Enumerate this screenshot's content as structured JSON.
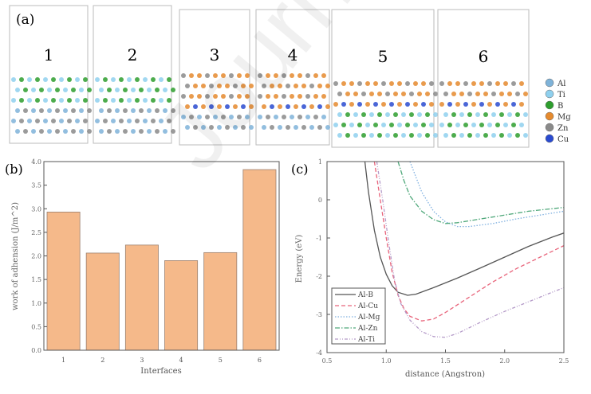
{
  "panel_a": {
    "label": "(a)",
    "structures": [
      "1",
      "2",
      "3",
      "4",
      "5",
      "6"
    ],
    "legend": [
      {
        "name": "Al",
        "color": "#7fb3d9"
      },
      {
        "name": "Ti",
        "color": "#8fd0ee"
      },
      {
        "name": "B",
        "color": "#2e9e2e"
      },
      {
        "name": "Mg",
        "color": "#e58a2e"
      },
      {
        "name": "Zn",
        "color": "#8a8a8a"
      },
      {
        "name": "Cu",
        "color": "#2a4bd0"
      }
    ]
  },
  "watermark": "Journal P",
  "chart_data": [
    {
      "panel_label": "(b)",
      "type": "bar",
      "categories": [
        "1",
        "2",
        "3",
        "4",
        "5",
        "6"
      ],
      "values": [
        2.93,
        2.06,
        2.23,
        1.9,
        2.07,
        3.83
      ],
      "xlabel": "Interfaces",
      "ylabel": "work of adhension (J/m^2)",
      "ylim": [
        0,
        4.0
      ],
      "yticks": [
        "0.0",
        "0.5",
        "1.0",
        "1.5",
        "2.0",
        "2.5",
        "3.0",
        "3.5",
        "4.0"
      ],
      "bar_color": "#f5b98a"
    },
    {
      "panel_label": "(c)",
      "type": "line",
      "xlabel": "distance (Angstron)",
      "ylabel": "Energy (eV)",
      "xlim": [
        0.5,
        2.5
      ],
      "ylim": [
        -4,
        1
      ],
      "xticks": [
        "0.5",
        "1.0",
        "1.5",
        "2.0",
        "2.5"
      ],
      "yticks": [
        "-4",
        "-3",
        "-2",
        "-1",
        "0",
        "1"
      ],
      "legend_position": "bottom-left",
      "series": [
        {
          "name": "Al-B",
          "color": "#555555",
          "dash": "none",
          "points": [
            [
              0.82,
              1
            ],
            [
              0.85,
              0.2
            ],
            [
              0.9,
              -0.8
            ],
            [
              0.95,
              -1.5
            ],
            [
              1.0,
              -1.95
            ],
            [
              1.05,
              -2.25
            ],
            [
              1.1,
              -2.42
            ],
            [
              1.18,
              -2.5
            ],
            [
              1.25,
              -2.47
            ],
            [
              1.4,
              -2.3
            ],
            [
              1.6,
              -2.05
            ],
            [
              1.8,
              -1.78
            ],
            [
              2.0,
              -1.5
            ],
            [
              2.2,
              -1.22
            ],
            [
              2.4,
              -0.98
            ],
            [
              2.5,
              -0.87
            ]
          ]
        },
        {
          "name": "Al-Cu",
          "color": "#e8637a",
          "dash": "5,3",
          "points": [
            [
              0.9,
              1
            ],
            [
              0.95,
              0.0
            ],
            [
              1.0,
              -1.0
            ],
            [
              1.05,
              -1.9
            ],
            [
              1.1,
              -2.5
            ],
            [
              1.15,
              -2.85
            ],
            [
              1.2,
              -3.05
            ],
            [
              1.3,
              -3.17
            ],
            [
              1.4,
              -3.12
            ],
            [
              1.5,
              -2.95
            ],
            [
              1.7,
              -2.55
            ],
            [
              1.9,
              -2.15
            ],
            [
              2.1,
              -1.8
            ],
            [
              2.3,
              -1.5
            ],
            [
              2.5,
              -1.2
            ]
          ]
        },
        {
          "name": "Al-Mg",
          "color": "#7fb0e0",
          "dash": "1.5,2",
          "points": [
            [
              1.2,
              1
            ],
            [
              1.25,
              0.6
            ],
            [
              1.3,
              0.2
            ],
            [
              1.4,
              -0.3
            ],
            [
              1.5,
              -0.58
            ],
            [
              1.6,
              -0.7
            ],
            [
              1.7,
              -0.7
            ],
            [
              1.9,
              -0.62
            ],
            [
              2.1,
              -0.5
            ],
            [
              2.3,
              -0.4
            ],
            [
              2.5,
              -0.3
            ]
          ]
        },
        {
          "name": "Al-Zn",
          "color": "#4fa87a",
          "dash": "6,2,1.5,2",
          "points": [
            [
              1.1,
              1
            ],
            [
              1.15,
              0.5
            ],
            [
              1.2,
              0.1
            ],
            [
              1.3,
              -0.3
            ],
            [
              1.4,
              -0.52
            ],
            [
              1.5,
              -0.62
            ],
            [
              1.6,
              -0.6
            ],
            [
              1.8,
              -0.5
            ],
            [
              2.0,
              -0.4
            ],
            [
              2.2,
              -0.3
            ],
            [
              2.5,
              -0.2
            ]
          ]
        },
        {
          "name": "Al-Ti",
          "color": "#b49ac8",
          "dash": "4,2,1,2,1,2",
          "points": [
            [
              0.92,
              1
            ],
            [
              0.97,
              0.0
            ],
            [
              1.02,
              -1.1
            ],
            [
              1.07,
              -2.1
            ],
            [
              1.12,
              -2.7
            ],
            [
              1.2,
              -3.15
            ],
            [
              1.3,
              -3.45
            ],
            [
              1.4,
              -3.58
            ],
            [
              1.5,
              -3.6
            ],
            [
              1.6,
              -3.5
            ],
            [
              1.8,
              -3.2
            ],
            [
              2.0,
              -2.92
            ],
            [
              2.2,
              -2.67
            ],
            [
              2.4,
              -2.42
            ],
            [
              2.5,
              -2.3
            ]
          ]
        }
      ]
    }
  ]
}
